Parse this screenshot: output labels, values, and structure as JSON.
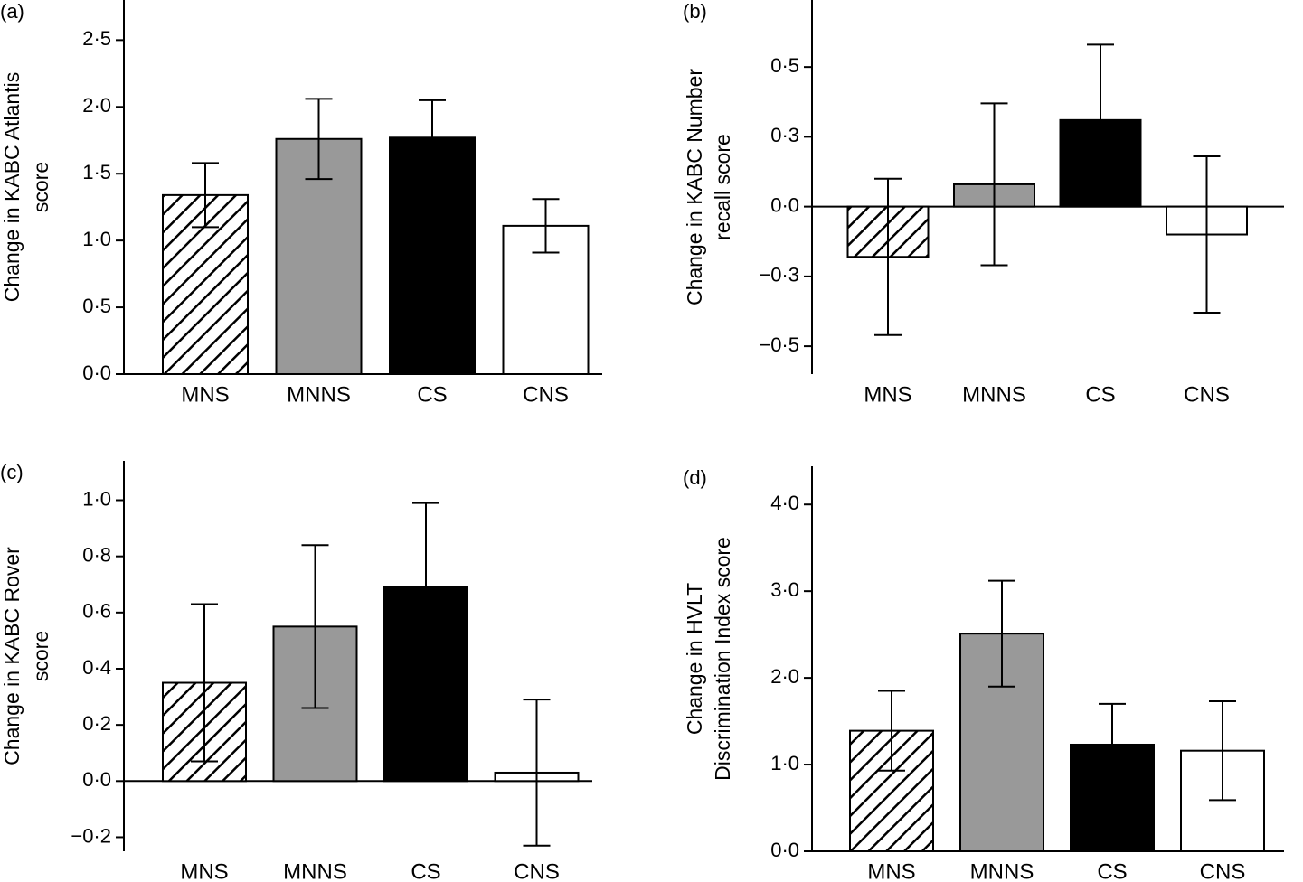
{
  "chart_data": [
    {
      "type": "bar",
      "panel_label": "(a)",
      "ylabel": [
        "Change in KABC Atlantis",
        "score"
      ],
      "categories": [
        "MNS",
        "MNNS",
        "CS",
        "CNS"
      ],
      "values": [
        1.34,
        1.76,
        1.77,
        1.11
      ],
      "errors": [
        0.24,
        0.3,
        0.28,
        0.2
      ],
      "colors": [
        "#ffffff",
        "#999999",
        "#000000",
        "#ffffff"
      ],
      "hatch": [
        true,
        false,
        false,
        false
      ],
      "ylim": [
        0,
        2.8
      ],
      "yticks": [
        {
          "value": 0,
          "label": "0·0"
        },
        {
          "value": 0.5,
          "label": "0·5"
        },
        {
          "value": 1,
          "label": "1·0"
        },
        {
          "value": 1.5,
          "label": "1·5"
        },
        {
          "value": 2,
          "label": "2·0"
        },
        {
          "value": 2.5,
          "label": "2·5"
        }
      ]
    },
    {
      "type": "bar",
      "panel_label": "(b)",
      "ylabel": [
        "Change in KABC Number",
        "recall score"
      ],
      "categories": [
        "MNS",
        "MNNS",
        "CS",
        "CNS"
      ],
      "values": [
        -0.18,
        0.08,
        0.31,
        -0.1
      ],
      "errors": [
        0.28,
        0.29,
        0.27,
        0.28
      ],
      "colors": [
        "#ffffff",
        "#999999",
        "#000000",
        "#ffffff"
      ],
      "hatch": [
        true,
        false,
        false,
        false
      ],
      "ylim": [
        -0.6,
        0.74
      ],
      "yticks": [
        {
          "value": -0.5,
          "label": "−0·5"
        },
        {
          "value": -0.25,
          "label": "−0·3"
        },
        {
          "value": 0,
          "label": "0·0"
        },
        {
          "value": 0.25,
          "label": "0·3"
        },
        {
          "value": 0.5,
          "label": "0·5"
        }
      ]
    },
    {
      "type": "bar",
      "panel_label": "(c)",
      "ylabel": [
        "Change in KABC Rover",
        "score"
      ],
      "categories": [
        "MNS",
        "MNNS",
        "CS",
        "CNS"
      ],
      "values": [
        0.35,
        0.55,
        0.69,
        0.03
      ],
      "errors": [
        0.28,
        0.29,
        0.3,
        0.26
      ],
      "colors": [
        "#ffffff",
        "#999999",
        "#000000",
        "#ffffff"
      ],
      "hatch": [
        true,
        false,
        false,
        false
      ],
      "ylim": [
        -0.25,
        1.14
      ],
      "yticks": [
        {
          "value": -0.2,
          "label": "−0·2"
        },
        {
          "value": 0,
          "label": "0·0"
        },
        {
          "value": 0.2,
          "label": "0·2"
        },
        {
          "value": 0.4,
          "label": "0·4"
        },
        {
          "value": 0.6,
          "label": "0·6"
        },
        {
          "value": 0.8,
          "label": "0·8"
        },
        {
          "value": 1,
          "label": "1·0"
        }
      ]
    },
    {
      "type": "bar",
      "panel_label": "(d)",
      "ylabel": [
        "Change in HVLT",
        "Discrimination Index score"
      ],
      "categories": [
        "MNS",
        "MNNS",
        "CS",
        "CNS"
      ],
      "values": [
        1.39,
        2.51,
        1.23,
        1.16
      ],
      "errors": [
        0.46,
        0.61,
        0.47,
        0.57
      ],
      "colors": [
        "#ffffff",
        "#999999",
        "#000000",
        "#ffffff"
      ],
      "hatch": [
        true,
        false,
        false,
        false
      ],
      "ylim": [
        0,
        4.44
      ],
      "yticks": [
        {
          "value": 0,
          "label": "0·0"
        },
        {
          "value": 1,
          "label": "1·0"
        },
        {
          "value": 2,
          "label": "2·0"
        },
        {
          "value": 3,
          "label": "3·0"
        },
        {
          "value": 4,
          "label": "4·0"
        }
      ]
    }
  ]
}
